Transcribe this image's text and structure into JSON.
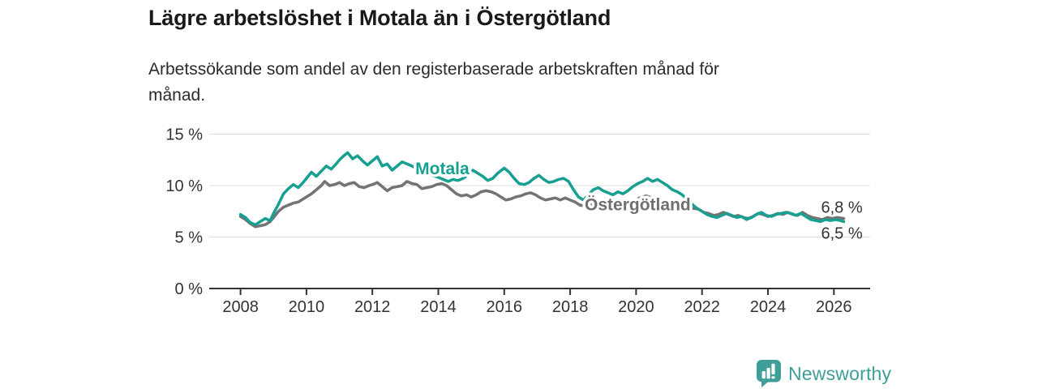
{
  "chart_data": {
    "type": "line",
    "title": "Lägre arbetslöshet i Motala än i Östergötland",
    "subtitle": "Arbetssökande som andel av den registerbaserade arbetskraften månad för månad.",
    "subtitle_lines": [
      "Arbetssökande som andel av den registerbaserade arbetskraften månad för",
      "månad."
    ],
    "unit": "%",
    "grid": "horizontal",
    "grid_color": "#dddddd",
    "axis_color": "#333333",
    "value_label_color": "#333333",
    "legend": "inline-labels",
    "xlim": [
      2007.05,
      2027.1
    ],
    "ylim": [
      0,
      15.5
    ],
    "x_ticks": [
      2008,
      2010,
      2012,
      2014,
      2016,
      2018,
      2020,
      2022,
      2024,
      2026
    ],
    "y_ticks": [
      {
        "value": 0,
        "label": "0 %"
      },
      {
        "value": 5,
        "label": "5 %"
      },
      {
        "value": 10,
        "label": "10 %"
      },
      {
        "value": 15,
        "label": "15 %"
      }
    ],
    "series": [
      {
        "name": "Östergötland",
        "color": "#737373",
        "label_color": "#6f6f6f",
        "end_label": "6,8 %",
        "end_value": 6.8,
        "label_anchor": {
          "x": 2020.05,
          "y": 7.6
        },
        "points": [
          [
            2008.0,
            7.0
          ],
          [
            2008.15,
            6.7
          ],
          [
            2008.3,
            6.3
          ],
          [
            2008.45,
            6.0
          ],
          [
            2008.6,
            6.1
          ],
          [
            2008.75,
            6.2
          ],
          [
            2008.9,
            6.5
          ],
          [
            2009.0,
            6.9
          ],
          [
            2009.15,
            7.5
          ],
          [
            2009.3,
            7.9
          ],
          [
            2009.45,
            8.1
          ],
          [
            2009.6,
            8.3
          ],
          [
            2009.75,
            8.4
          ],
          [
            2009.9,
            8.7
          ],
          [
            2010.0,
            8.9
          ],
          [
            2010.15,
            9.2
          ],
          [
            2010.3,
            9.6
          ],
          [
            2010.45,
            10.0
          ],
          [
            2010.55,
            10.4
          ],
          [
            2010.7,
            10.0
          ],
          [
            2010.85,
            10.1
          ],
          [
            2011.0,
            10.3
          ],
          [
            2011.15,
            10.0
          ],
          [
            2011.3,
            10.2
          ],
          [
            2011.45,
            10.3
          ],
          [
            2011.6,
            9.9
          ],
          [
            2011.75,
            9.8
          ],
          [
            2011.9,
            10.0
          ],
          [
            2012.0,
            10.1
          ],
          [
            2012.15,
            10.3
          ],
          [
            2012.3,
            9.9
          ],
          [
            2012.45,
            9.5
          ],
          [
            2012.6,
            9.8
          ],
          [
            2012.75,
            9.9
          ],
          [
            2012.9,
            10.0
          ],
          [
            2013.05,
            10.4
          ],
          [
            2013.2,
            10.2
          ],
          [
            2013.35,
            10.1
          ],
          [
            2013.5,
            9.7
          ],
          [
            2013.65,
            9.8
          ],
          [
            2013.8,
            9.9
          ],
          [
            2013.95,
            10.1
          ],
          [
            2014.1,
            10.2
          ],
          [
            2014.25,
            10.0
          ],
          [
            2014.4,
            9.6
          ],
          [
            2014.55,
            9.2
          ],
          [
            2014.7,
            9.0
          ],
          [
            2014.85,
            9.1
          ],
          [
            2015.0,
            8.9
          ],
          [
            2015.15,
            9.1
          ],
          [
            2015.3,
            9.4
          ],
          [
            2015.45,
            9.5
          ],
          [
            2015.6,
            9.4
          ],
          [
            2015.75,
            9.2
          ],
          [
            2015.9,
            8.9
          ],
          [
            2016.05,
            8.6
          ],
          [
            2016.2,
            8.7
          ],
          [
            2016.35,
            8.9
          ],
          [
            2016.5,
            9.0
          ],
          [
            2016.65,
            9.2
          ],
          [
            2016.8,
            9.3
          ],
          [
            2016.95,
            9.1
          ],
          [
            2017.1,
            8.8
          ],
          [
            2017.25,
            8.6
          ],
          [
            2017.4,
            8.7
          ],
          [
            2017.55,
            8.8
          ],
          [
            2017.7,
            8.6
          ],
          [
            2017.85,
            8.8
          ],
          [
            2018.0,
            8.6
          ],
          [
            2018.15,
            8.4
          ],
          [
            2018.3,
            8.1
          ],
          [
            2018.5,
            8.0
          ],
          [
            2018.7,
            8.2
          ],
          [
            2018.9,
            8.1
          ],
          [
            2019.1,
            7.9
          ],
          [
            2019.3,
            8.0
          ],
          [
            2019.5,
            7.9
          ],
          [
            2019.7,
            8.1
          ],
          [
            2019.9,
            8.4
          ],
          [
            2020.1,
            8.8
          ],
          [
            2020.3,
            9.0
          ],
          [
            2020.5,
            8.8
          ],
          [
            2020.7,
            8.7
          ],
          [
            2020.9,
            8.5
          ],
          [
            2021.1,
            8.2
          ],
          [
            2021.3,
            8.0
          ],
          [
            2021.5,
            7.9
          ],
          [
            2021.7,
            7.8
          ],
          [
            2021.9,
            7.7
          ],
          [
            2022.05,
            7.4
          ],
          [
            2022.2,
            7.3
          ],
          [
            2022.35,
            7.1
          ],
          [
            2022.5,
            7.2
          ],
          [
            2022.65,
            7.4
          ],
          [
            2022.8,
            7.2
          ],
          [
            2022.95,
            7.0
          ],
          [
            2023.1,
            7.1
          ],
          [
            2023.25,
            6.9
          ],
          [
            2023.4,
            6.8
          ],
          [
            2023.55,
            7.0
          ],
          [
            2023.7,
            7.3
          ],
          [
            2023.85,
            7.2
          ],
          [
            2024.0,
            7.0
          ],
          [
            2024.15,
            7.1
          ],
          [
            2024.3,
            7.3
          ],
          [
            2024.45,
            7.2
          ],
          [
            2024.6,
            7.4
          ],
          [
            2024.75,
            7.2
          ],
          [
            2024.9,
            7.1
          ],
          [
            2025.05,
            7.4
          ],
          [
            2025.2,
            7.1
          ],
          [
            2025.35,
            6.9
          ],
          [
            2025.5,
            6.8
          ],
          [
            2025.65,
            6.7
          ],
          [
            2025.8,
            6.9
          ],
          [
            2025.95,
            6.8
          ],
          [
            2026.1,
            6.9
          ],
          [
            2026.3,
            6.8
          ]
        ]
      },
      {
        "name": "Motala",
        "color": "#17a091",
        "label_color": "#17a091",
        "end_label": "6,5 %",
        "end_value": 6.5,
        "label_anchor": {
          "x": 2014.12,
          "y": 11.1
        },
        "points": [
          [
            2008.0,
            7.2
          ],
          [
            2008.15,
            6.9
          ],
          [
            2008.3,
            6.4
          ],
          [
            2008.45,
            6.2
          ],
          [
            2008.6,
            6.5
          ],
          [
            2008.75,
            6.8
          ],
          [
            2008.9,
            6.6
          ],
          [
            2009.0,
            7.3
          ],
          [
            2009.15,
            8.2
          ],
          [
            2009.3,
            9.2
          ],
          [
            2009.45,
            9.7
          ],
          [
            2009.6,
            10.1
          ],
          [
            2009.75,
            9.8
          ],
          [
            2009.9,
            10.3
          ],
          [
            2010.0,
            10.7
          ],
          [
            2010.15,
            11.3
          ],
          [
            2010.3,
            10.9
          ],
          [
            2010.45,
            11.4
          ],
          [
            2010.6,
            11.9
          ],
          [
            2010.75,
            11.6
          ],
          [
            2010.9,
            12.1
          ],
          [
            2011.0,
            12.5
          ],
          [
            2011.1,
            12.8
          ],
          [
            2011.25,
            13.2
          ],
          [
            2011.4,
            12.6
          ],
          [
            2011.55,
            12.9
          ],
          [
            2011.7,
            12.4
          ],
          [
            2011.85,
            12.0
          ],
          [
            2012.0,
            12.4
          ],
          [
            2012.15,
            12.8
          ],
          [
            2012.3,
            11.9
          ],
          [
            2012.45,
            12.1
          ],
          [
            2012.6,
            11.5
          ],
          [
            2012.75,
            11.9
          ],
          [
            2012.9,
            12.3
          ],
          [
            2013.05,
            12.1
          ],
          [
            2013.2,
            11.9
          ],
          [
            2013.4,
            11.6
          ],
          [
            2013.6,
            11.3
          ],
          [
            2013.8,
            11.0
          ],
          [
            2014.0,
            10.8
          ],
          [
            2014.15,
            10.6
          ],
          [
            2014.3,
            10.4
          ],
          [
            2014.45,
            10.6
          ],
          [
            2014.6,
            10.5
          ],
          [
            2014.75,
            10.7
          ],
          [
            2014.9,
            11.0
          ],
          [
            2015.05,
            11.5
          ],
          [
            2015.2,
            11.2
          ],
          [
            2015.35,
            10.9
          ],
          [
            2015.5,
            10.5
          ],
          [
            2015.65,
            10.7
          ],
          [
            2015.8,
            11.2
          ],
          [
            2016.0,
            11.7
          ],
          [
            2016.15,
            11.3
          ],
          [
            2016.3,
            10.7
          ],
          [
            2016.45,
            10.2
          ],
          [
            2016.6,
            10.1
          ],
          [
            2016.75,
            10.3
          ],
          [
            2016.9,
            10.7
          ],
          [
            2017.05,
            11.0
          ],
          [
            2017.2,
            10.6
          ],
          [
            2017.35,
            10.3
          ],
          [
            2017.5,
            10.4
          ],
          [
            2017.65,
            10.6
          ],
          [
            2017.8,
            10.7
          ],
          [
            2017.95,
            10.4
          ],
          [
            2018.1,
            9.6
          ],
          [
            2018.25,
            8.9
          ],
          [
            2018.4,
            8.6
          ],
          [
            2018.55,
            9.1
          ],
          [
            2018.7,
            9.6
          ],
          [
            2018.85,
            9.8
          ],
          [
            2019.0,
            9.5
          ],
          [
            2019.15,
            9.3
          ],
          [
            2019.3,
            9.1
          ],
          [
            2019.45,
            9.4
          ],
          [
            2019.6,
            9.2
          ],
          [
            2019.75,
            9.5
          ],
          [
            2019.9,
            9.9
          ],
          [
            2020.05,
            10.2
          ],
          [
            2020.2,
            10.4
          ],
          [
            2020.35,
            10.7
          ],
          [
            2020.5,
            10.4
          ],
          [
            2020.65,
            10.6
          ],
          [
            2020.8,
            10.3
          ],
          [
            2020.95,
            10.0
          ],
          [
            2021.1,
            9.6
          ],
          [
            2021.25,
            9.4
          ],
          [
            2021.4,
            9.1
          ],
          [
            2021.6,
            8.5
          ],
          [
            2021.8,
            7.9
          ],
          [
            2022.0,
            7.5
          ],
          [
            2022.15,
            7.2
          ],
          [
            2022.3,
            7.0
          ],
          [
            2022.45,
            6.9
          ],
          [
            2022.6,
            7.1
          ],
          [
            2022.75,
            7.3
          ],
          [
            2022.9,
            7.1
          ],
          [
            2023.05,
            6.9
          ],
          [
            2023.2,
            7.0
          ],
          [
            2023.35,
            6.7
          ],
          [
            2023.5,
            6.9
          ],
          [
            2023.65,
            7.2
          ],
          [
            2023.8,
            7.4
          ],
          [
            2023.95,
            7.1
          ],
          [
            2024.1,
            7.0
          ],
          [
            2024.25,
            7.2
          ],
          [
            2024.4,
            7.3
          ],
          [
            2024.55,
            7.4
          ],
          [
            2024.7,
            7.3
          ],
          [
            2024.85,
            7.1
          ],
          [
            2025.0,
            7.3
          ],
          [
            2025.15,
            7.0
          ],
          [
            2025.3,
            6.7
          ],
          [
            2025.45,
            6.6
          ],
          [
            2025.6,
            6.5
          ],
          [
            2025.75,
            6.7
          ],
          [
            2025.9,
            6.6
          ],
          [
            2026.05,
            6.7
          ],
          [
            2026.2,
            6.6
          ],
          [
            2026.3,
            6.5
          ]
        ]
      }
    ]
  },
  "footer": {
    "brand": "Newsworthy",
    "brand_color": "#3f9e97"
  }
}
